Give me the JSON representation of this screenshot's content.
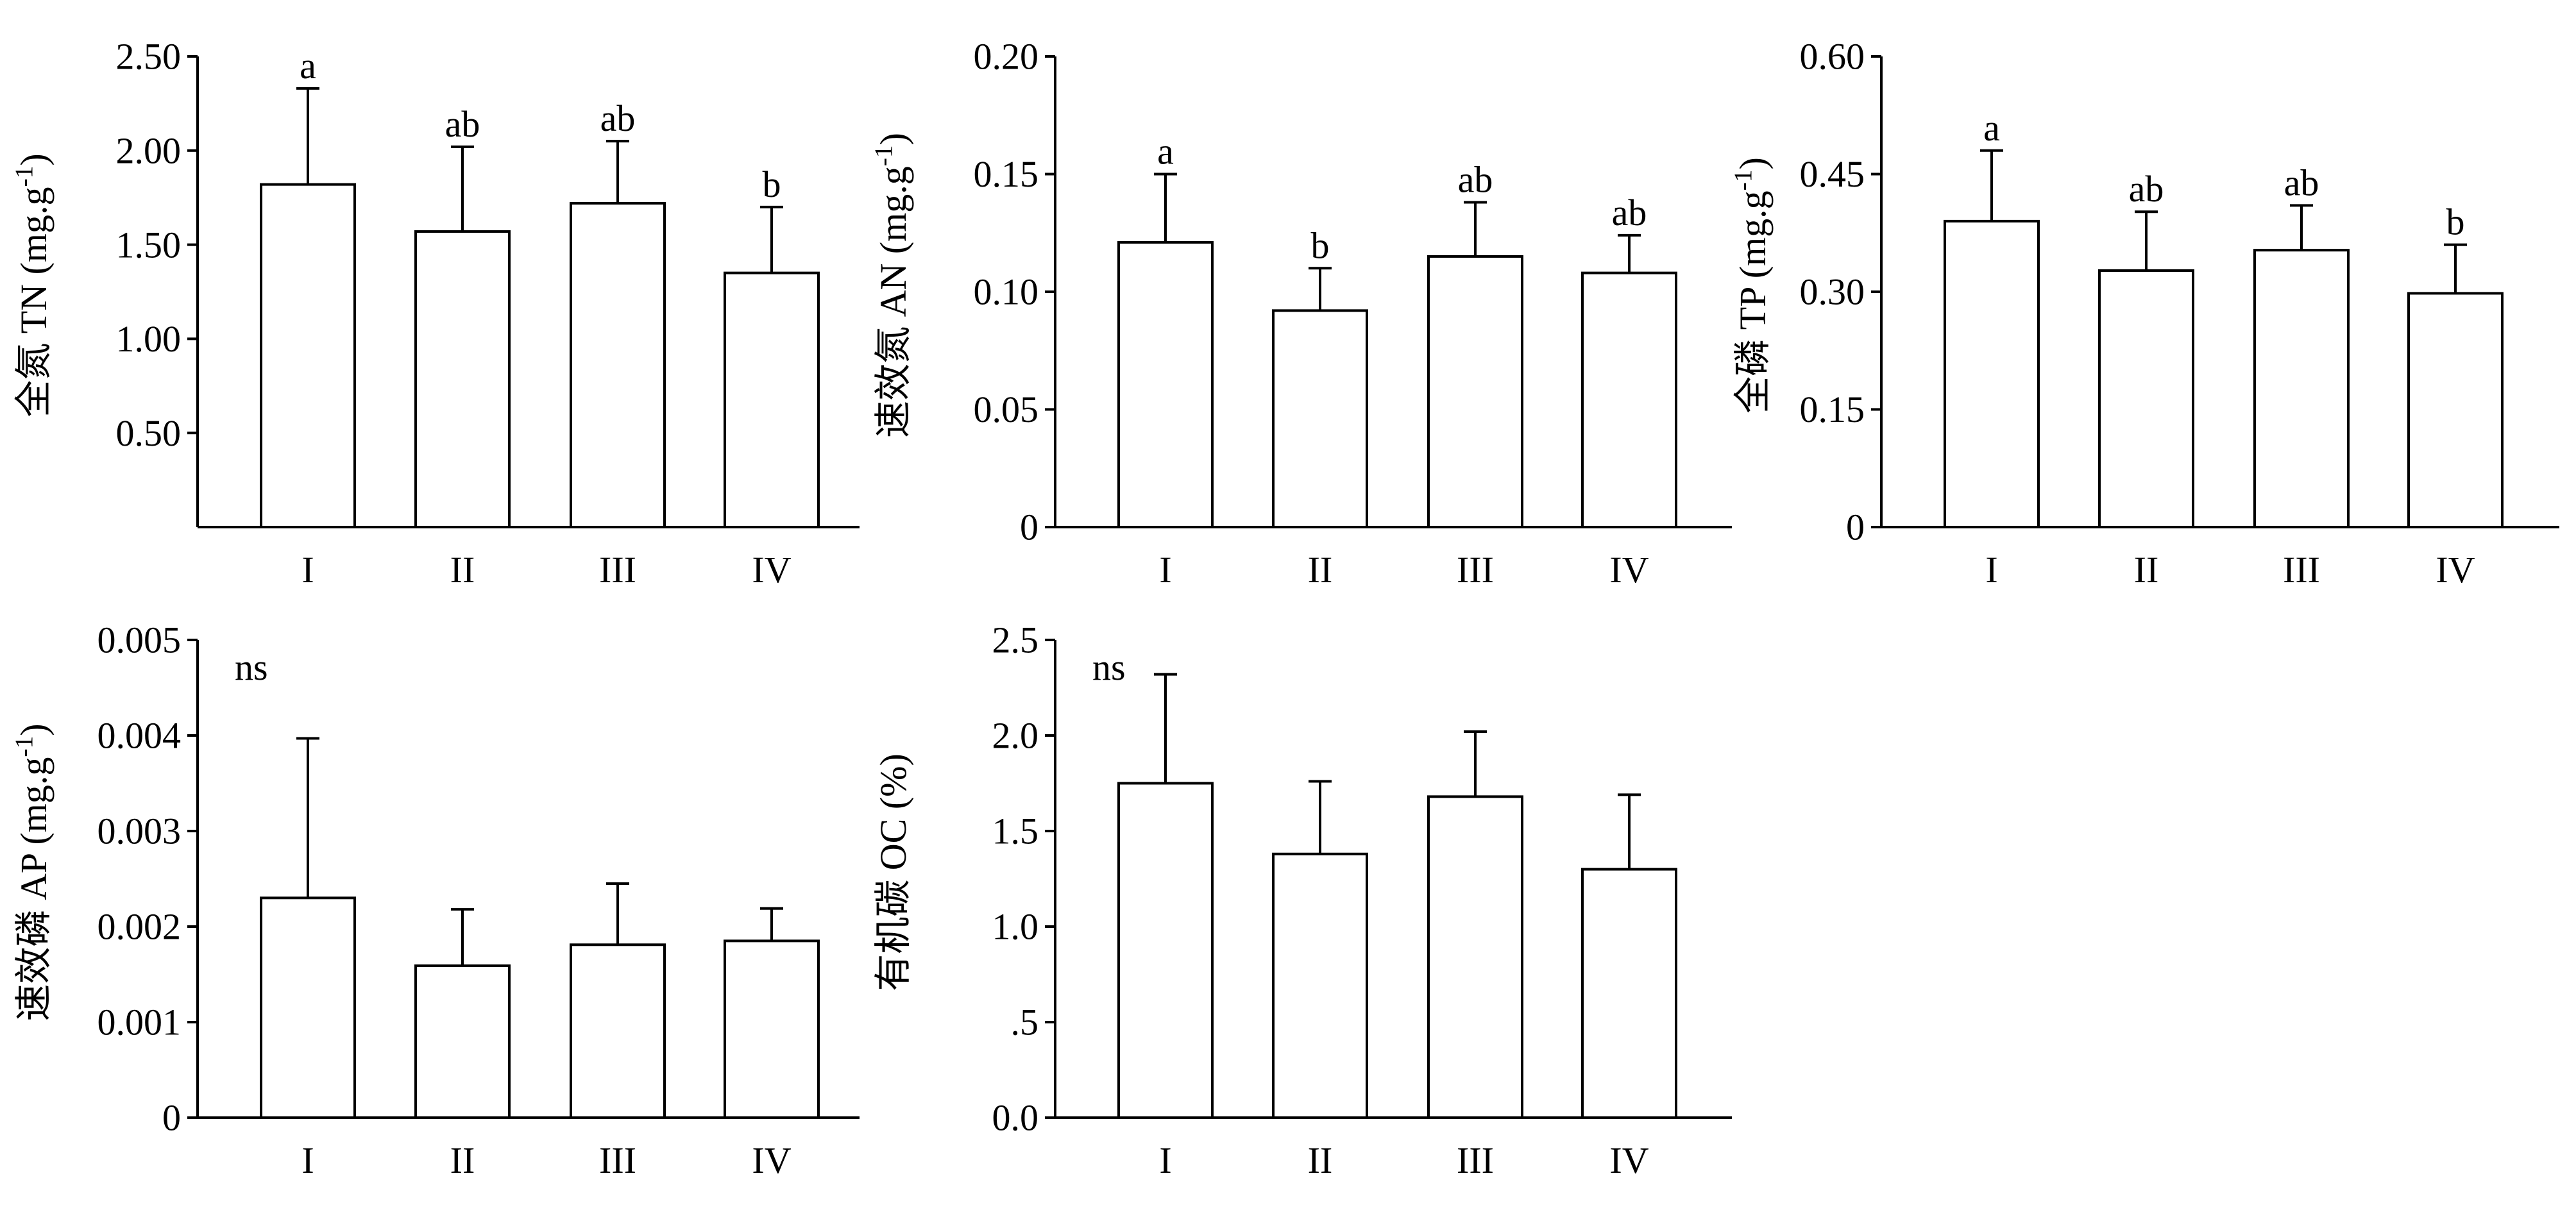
{
  "chart_data": [
    {
      "type": "bar",
      "ylabel": "全氮  TN (mg.g-1)",
      "ylabel_main": "全氮  TN (mg.g",
      "ylabel_sup": "-1",
      "ylabel_end": ")",
      "categories": [
        "I",
        "II",
        "III",
        "IV"
      ],
      "values": [
        1.82,
        1.57,
        1.72,
        1.35
      ],
      "errors": [
        0.51,
        0.45,
        0.33,
        0.35
      ],
      "significance": [
        "a",
        "ab",
        "ab",
        "b"
      ],
      "ylim": [
        0.0,
        2.5
      ],
      "yticks": [
        0.5,
        1.0,
        1.5,
        2.0,
        2.5
      ],
      "ytick_labels": [
        "0.50",
        "1.00",
        "1.50",
        "2.00",
        "2.50"
      ],
      "note": "",
      "grid": false
    },
    {
      "type": "bar",
      "ylabel": "速效氮  AN (mg.g-1)",
      "ylabel_main": "速效氮  AN (mg.g",
      "ylabel_sup": "-1",
      "ylabel_end": ")",
      "categories": [
        "I",
        "II",
        "III",
        "IV"
      ],
      "values": [
        0.121,
        0.092,
        0.115,
        0.108
      ],
      "errors": [
        0.029,
        0.018,
        0.023,
        0.016
      ],
      "significance": [
        "a",
        "b",
        "ab",
        "ab"
      ],
      "ylim": [
        0.0,
        0.2
      ],
      "yticks": [
        0.0,
        0.05,
        0.1,
        0.15,
        0.2
      ],
      "ytick_labels": [
        "0",
        "0.05",
        "0.10",
        "0.15",
        "0.20"
      ],
      "note": "",
      "grid": false
    },
    {
      "type": "bar",
      "ylabel": "全磷  TP (mg.g-1)",
      "ylabel_main": "全磷  TP (mg.g",
      "ylabel_sup": "-1",
      "ylabel_end": ")",
      "categories": [
        "I",
        "II",
        "III",
        "IV"
      ],
      "values": [
        0.39,
        0.327,
        0.353,
        0.298
      ],
      "errors": [
        0.09,
        0.075,
        0.057,
        0.062
      ],
      "significance": [
        "a",
        "ab",
        "ab",
        "b"
      ],
      "ylim": [
        0.0,
        0.6
      ],
      "yticks": [
        0.0,
        0.15,
        0.3,
        0.45,
        0.6
      ],
      "ytick_labels": [
        "0",
        "0.15",
        "0.30",
        "0.45",
        "0.60"
      ],
      "note": "",
      "grid": false
    },
    {
      "type": "bar",
      "ylabel": "速效磷  AP (mg.g-1)",
      "ylabel_main": "速效磷  AP (mg.g",
      "ylabel_sup": "-1",
      "ylabel_end": ")",
      "categories": [
        "I",
        "II",
        "III",
        "IV"
      ],
      "values": [
        0.0023,
        0.00159,
        0.00181,
        0.00185
      ],
      "errors": [
        0.00167,
        0.00059,
        0.00064,
        0.00034
      ],
      "significance": [
        "",
        "",
        "",
        ""
      ],
      "ylim": [
        0.0,
        0.005
      ],
      "yticks": [
        0.0,
        0.001,
        0.002,
        0.003,
        0.004,
        0.005
      ],
      "ytick_labels": [
        "0",
        "0.001",
        "0.002",
        "0.003",
        "0.004",
        "0.005"
      ],
      "note": "ns",
      "grid": false
    },
    {
      "type": "bar",
      "ylabel": "有机碳  OC (%)",
      "ylabel_main": "有机碳  OC (%)",
      "ylabel_sup": "",
      "ylabel_end": "",
      "categories": [
        "I",
        "II",
        "III",
        "IV"
      ],
      "values": [
        1.75,
        1.38,
        1.68,
        1.3
      ],
      "errors": [
        0.57,
        0.38,
        0.34,
        0.39
      ],
      "significance": [
        "",
        "",
        "",
        ""
      ],
      "ylim": [
        0.0,
        2.5
      ],
      "yticks": [
        0.0,
        0.5,
        1.0,
        1.5,
        2.0,
        2.5
      ],
      "ytick_labels": [
        "0.0",
        ".5",
        "1.0",
        "1.5",
        "2.0",
        "2.5"
      ],
      "note": "ns",
      "grid": false
    }
  ]
}
